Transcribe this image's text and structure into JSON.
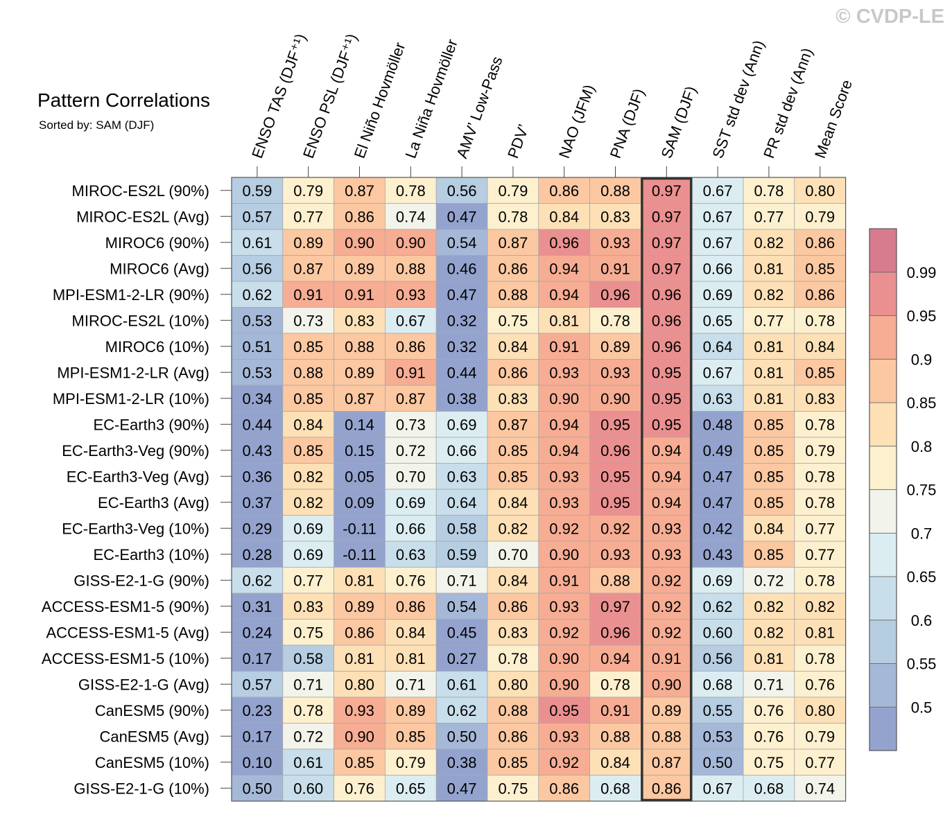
{
  "watermark": "© CVDP-LE",
  "chart_data": {
    "type": "heatmap",
    "title": "Pattern Correlations",
    "subtitle": "Sorted by: SAM (DJF)",
    "columns": [
      "ENSO TAS (DJF⁺¹)",
      "ENSO PSL (DJF⁺¹)",
      "El Niño Hovmöller",
      "La Niña Hovmöller",
      "AMV’ Low-Pass",
      "PDV’",
      "NAO (JFM)",
      "PNA (DJF)",
      "SAM (DJF)",
      "SST std dev (Ann)",
      "PR std dev (Ann)",
      "Mean Score"
    ],
    "highlight_column": "SAM (DJF)",
    "rows": [
      "MIROC-ES2L (90%)",
      "MIROC-ES2L (Avg)",
      "MIROC6 (90%)",
      "MIROC6 (Avg)",
      "MPI-ESM1-2-LR (90%)",
      "MIROC-ES2L (10%)",
      "MIROC6 (10%)",
      "MPI-ESM1-2-LR (Avg)",
      "MPI-ESM1-2-LR (10%)",
      "EC-Earth3 (90%)",
      "EC-Earth3-Veg (90%)",
      "EC-Earth3-Veg (Avg)",
      "EC-Earth3 (Avg)",
      "EC-Earth3-Veg (10%)",
      "EC-Earth3 (10%)",
      "GISS-E2-1-G (90%)",
      "ACCESS-ESM1-5 (90%)",
      "ACCESS-ESM1-5 (Avg)",
      "ACCESS-ESM1-5 (10%)",
      "GISS-E2-1-G (Avg)",
      "CanESM5 (90%)",
      "CanESM5 (Avg)",
      "CanESM5 (10%)",
      "GISS-E2-1-G (10%)"
    ],
    "values": [
      [
        "0.59",
        "0.79",
        "0.87",
        "0.78",
        "0.56",
        "0.79",
        "0.86",
        "0.88",
        "0.97",
        "0.67",
        "0.78",
        "0.80"
      ],
      [
        "0.57",
        "0.77",
        "0.86",
        "0.74",
        "0.47",
        "0.78",
        "0.84",
        "0.83",
        "0.97",
        "0.67",
        "0.77",
        "0.79"
      ],
      [
        "0.61",
        "0.89",
        "0.90",
        "0.90",
        "0.54",
        "0.87",
        "0.96",
        "0.93",
        "0.97",
        "0.67",
        "0.82",
        "0.86"
      ],
      [
        "0.56",
        "0.87",
        "0.89",
        "0.88",
        "0.46",
        "0.86",
        "0.94",
        "0.91",
        "0.97",
        "0.66",
        "0.81",
        "0.85"
      ],
      [
        "0.62",
        "0.91",
        "0.91",
        "0.93",
        "0.47",
        "0.88",
        "0.94",
        "0.96",
        "0.96",
        "0.69",
        "0.82",
        "0.86"
      ],
      [
        "0.53",
        "0.73",
        "0.83",
        "0.67",
        "0.32",
        "0.75",
        "0.81",
        "0.78",
        "0.96",
        "0.65",
        "0.77",
        "0.78"
      ],
      [
        "0.51",
        "0.85",
        "0.88",
        "0.86",
        "0.32",
        "0.84",
        "0.91",
        "0.89",
        "0.96",
        "0.64",
        "0.81",
        "0.84"
      ],
      [
        "0.53",
        "0.88",
        "0.89",
        "0.91",
        "0.44",
        "0.86",
        "0.93",
        "0.93",
        "0.95",
        "0.67",
        "0.81",
        "0.85"
      ],
      [
        "0.34",
        "0.85",
        "0.87",
        "0.87",
        "0.38",
        "0.83",
        "0.90",
        "0.90",
        "0.95",
        "0.63",
        "0.81",
        "0.83"
      ],
      [
        "0.44",
        "0.84",
        "0.14",
        "0.73",
        "0.69",
        "0.87",
        "0.94",
        "0.95",
        "0.95",
        "0.48",
        "0.85",
        "0.78"
      ],
      [
        "0.43",
        "0.85",
        "0.15",
        "0.72",
        "0.66",
        "0.85",
        "0.94",
        "0.96",
        "0.94",
        "0.49",
        "0.85",
        "0.79"
      ],
      [
        "0.36",
        "0.82",
        "0.05",
        "0.70",
        "0.63",
        "0.85",
        "0.93",
        "0.95",
        "0.94",
        "0.47",
        "0.85",
        "0.78"
      ],
      [
        "0.37",
        "0.82",
        "0.09",
        "0.69",
        "0.64",
        "0.84",
        "0.93",
        "0.95",
        "0.94",
        "0.47",
        "0.85",
        "0.78"
      ],
      [
        "0.29",
        "0.69",
        "-0.11",
        "0.66",
        "0.58",
        "0.82",
        "0.92",
        "0.92",
        "0.93",
        "0.42",
        "0.84",
        "0.77"
      ],
      [
        "0.28",
        "0.69",
        "-0.11",
        "0.63",
        "0.59",
        "0.70",
        "0.90",
        "0.93",
        "0.93",
        "0.43",
        "0.85",
        "0.77"
      ],
      [
        "0.62",
        "0.77",
        "0.81",
        "0.76",
        "0.71",
        "0.84",
        "0.91",
        "0.88",
        "0.92",
        "0.69",
        "0.72",
        "0.78"
      ],
      [
        "0.31",
        "0.83",
        "0.89",
        "0.86",
        "0.54",
        "0.86",
        "0.93",
        "0.97",
        "0.92",
        "0.62",
        "0.82",
        "0.82"
      ],
      [
        "0.24",
        "0.75",
        "0.86",
        "0.84",
        "0.45",
        "0.83",
        "0.92",
        "0.96",
        "0.92",
        "0.60",
        "0.82",
        "0.81"
      ],
      [
        "0.17",
        "0.58",
        "0.81",
        "0.81",
        "0.27",
        "0.78",
        "0.90",
        "0.94",
        "0.91",
        "0.56",
        "0.81",
        "0.78"
      ],
      [
        "0.57",
        "0.71",
        "0.80",
        "0.71",
        "0.61",
        "0.80",
        "0.90",
        "0.78",
        "0.90",
        "0.68",
        "0.71",
        "0.76"
      ],
      [
        "0.23",
        "0.78",
        "0.93",
        "0.89",
        "0.62",
        "0.88",
        "0.95",
        "0.91",
        "0.89",
        "0.55",
        "0.76",
        "0.80"
      ],
      [
        "0.17",
        "0.72",
        "0.90",
        "0.85",
        "0.50",
        "0.86",
        "0.93",
        "0.88",
        "0.88",
        "0.53",
        "0.76",
        "0.79"
      ],
      [
        "0.10",
        "0.61",
        "0.85",
        "0.79",
        "0.38",
        "0.85",
        "0.92",
        "0.84",
        "0.87",
        "0.50",
        "0.75",
        "0.77"
      ],
      [
        "0.50",
        "0.60",
        "0.76",
        "0.65",
        "0.47",
        "0.75",
        "0.86",
        "0.68",
        "0.86",
        "0.67",
        "0.68",
        "0.74"
      ]
    ],
    "colorbar": {
      "levels": [
        0.5,
        0.55,
        0.6,
        0.65,
        0.7,
        0.75,
        0.8,
        0.85,
        0.9,
        0.95,
        0.99
      ],
      "tick_labels": [
        "0.5",
        "0.55",
        "0.6",
        "0.65",
        "0.7",
        "0.75",
        "0.8",
        "0.85",
        "0.9",
        "0.95",
        "0.99"
      ],
      "colors": [
        "#94a3ce",
        "#a5b8d8",
        "#b6cde2",
        "#c8deea",
        "#dcedf2",
        "#f2f3ea",
        "#fdf0cf",
        "#fde0b6",
        "#fbc8a2",
        "#f6ad93",
        "#eb9090",
        "#d77b8f"
      ],
      "placement": "right"
    }
  }
}
